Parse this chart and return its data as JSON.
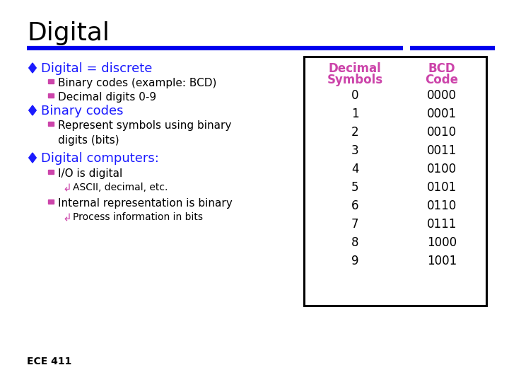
{
  "title": "Digital",
  "title_color": "#000000",
  "title_fontsize": 26,
  "background_color": "#ffffff",
  "blue_bar_color": "#0000ee",
  "bullet_color": "#1a1aff",
  "sub_bullet_color": "#cc44aa",
  "sub_sub_bullet_color": "#cc44aa",
  "table_header_color": "#cc44aa",
  "table_text_color": "#000000",
  "footer_text": "ECE 411",
  "bullet1_text": "Digital = discrete",
  "bullet1_subs": [
    "Binary codes (example: BCD)",
    "Decimal digits 0-9"
  ],
  "bullet2_text": "Binary codes",
  "bullet2_subs": [
    "Represent symbols using binary\ndigits (bits)"
  ],
  "bullet3_text": "Digital computers:",
  "bullet3_subs": [
    "I/O is digital",
    "Internal representation is binary"
  ],
  "bullet3_sub1_subsubs": [
    "ASCII, decimal, etc."
  ],
  "bullet3_sub2_subsubs": [
    "Process information in bits"
  ],
  "table_decimals": [
    "0",
    "1",
    "2",
    "3",
    "4",
    "5",
    "6",
    "7",
    "8",
    "9"
  ],
  "table_bcd": [
    "0000",
    "0001",
    "0010",
    "0011",
    "0100",
    "0101",
    "0110",
    "0111",
    "1000",
    "1001"
  ]
}
